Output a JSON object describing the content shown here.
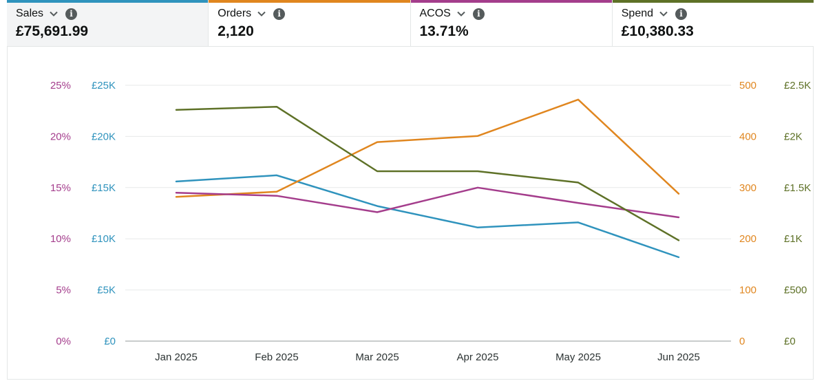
{
  "metrics": [
    {
      "label": "Sales",
      "value": "£75,691.99",
      "color": "#2f93bd",
      "selected": true
    },
    {
      "label": "Orders",
      "value": "2,120",
      "color": "#e0861f",
      "selected": false
    },
    {
      "label": "ACOS",
      "value": "13.71%",
      "color": "#a43d8c",
      "selected": false
    },
    {
      "label": "Spend",
      "value": "£10,380.33",
      "color": "#5e7127",
      "selected": false
    }
  ],
  "icons": {
    "dropdown": "chevron-down-icon",
    "info": "info-icon"
  },
  "chart_data": {
    "type": "line",
    "categories": [
      "Jan 2025",
      "Feb 2025",
      "Mar 2025",
      "Apr 2025",
      "May 2025",
      "Jun 2025"
    ],
    "grid": true,
    "axes": {
      "acos": {
        "side": "left-outer",
        "ticks": [
          "0%",
          "5%",
          "10%",
          "15%",
          "20%",
          "25%"
        ],
        "range": [
          0,
          25
        ],
        "color": "#a43d8c"
      },
      "sales": {
        "side": "left-inner",
        "ticks": [
          "£0",
          "£5K",
          "£10K",
          "£15K",
          "£20K",
          "£25K"
        ],
        "range": [
          0,
          25000
        ],
        "color": "#2f93bd"
      },
      "orders": {
        "side": "right-inner",
        "ticks": [
          "0",
          "100",
          "200",
          "300",
          "400",
          "500"
        ],
        "range": [
          0,
          500
        ],
        "color": "#e0861f"
      },
      "spend": {
        "side": "right-outer",
        "ticks": [
          "£0",
          "£500",
          "£1K",
          "£1.5K",
          "£2K",
          "£2.5K"
        ],
        "range": [
          0,
          2500
        ],
        "color": "#5e7127"
      }
    },
    "series": [
      {
        "name": "Sales",
        "axis": "sales",
        "color": "#2f93bd",
        "values": [
          15600,
          16200,
          13200,
          11100,
          11600,
          8200
        ]
      },
      {
        "name": "Orders",
        "axis": "orders",
        "color": "#e0861f",
        "values": [
          282,
          292,
          389,
          401,
          472,
          288
        ]
      },
      {
        "name": "ACOS",
        "axis": "acos",
        "color": "#a43d8c",
        "values": [
          14.5,
          14.2,
          12.6,
          15.0,
          13.5,
          12.1
        ]
      },
      {
        "name": "Spend",
        "axis": "spend",
        "color": "#5e7127",
        "values": [
          2260,
          2290,
          1660,
          1660,
          1550,
          985
        ]
      }
    ]
  }
}
